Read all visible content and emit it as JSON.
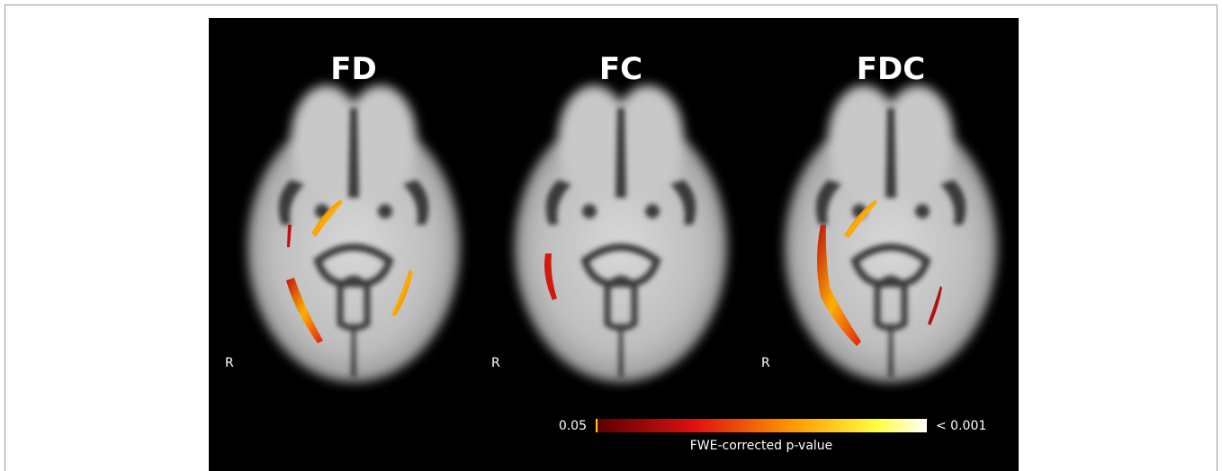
{
  "panels": [
    {
      "title": "FD",
      "side_label": "R"
    },
    {
      "title": "FC",
      "side_label": "R"
    },
    {
      "title": "FDC",
      "side_label": "R"
    }
  ],
  "colorbar": {
    "min_label": "0.05",
    "max_label": "< 0.001",
    "caption": "FWE-corrected p-value"
  }
}
